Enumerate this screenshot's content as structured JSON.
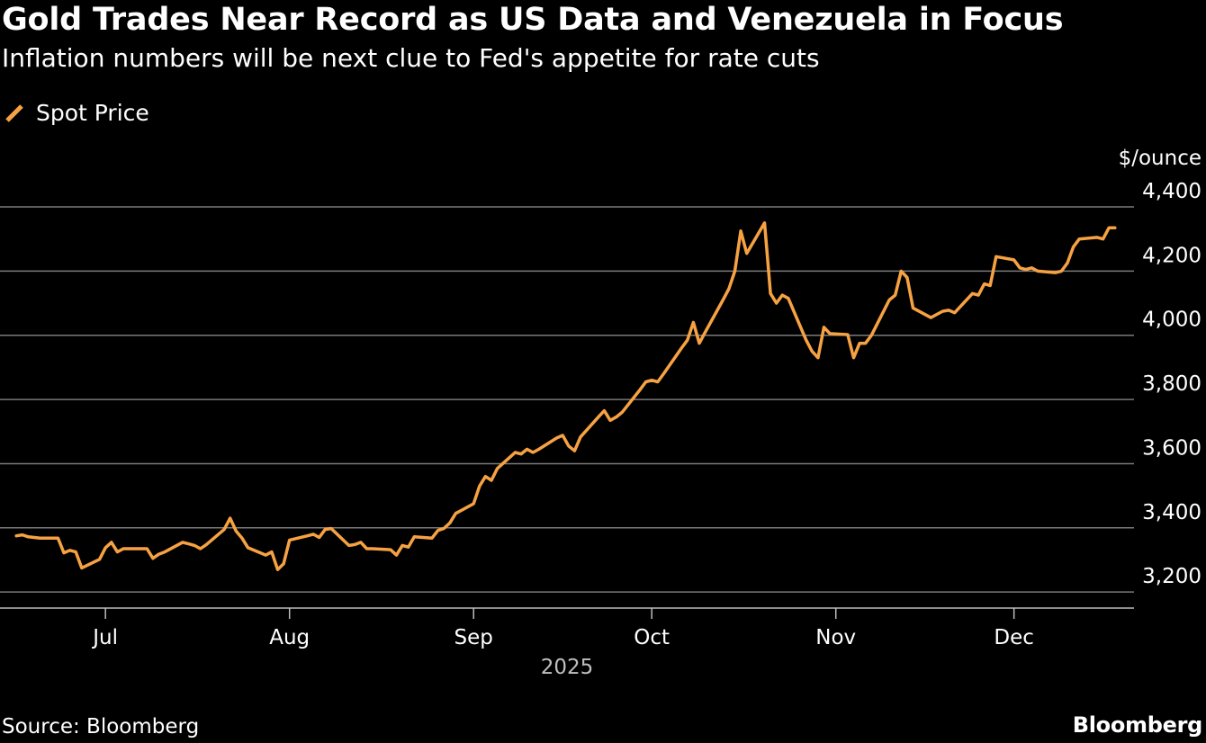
{
  "header": {
    "title": "Gold Trades Near Record as US Data and Venezuela in Focus",
    "subtitle": "Inflation numbers will be next clue to Fed's appetite for rate cuts"
  },
  "footer": {
    "source": "Source: Bloomberg",
    "brand": "Bloomberg"
  },
  "colors": {
    "line": "#f7a242",
    "background": "#000000",
    "grid": "#7a7a7a"
  },
  "chart_data": {
    "type": "line",
    "series": [
      {
        "name": "Spot Price",
        "points": [
          [
            "2025-06-16",
            3375
          ],
          [
            "2025-06-17",
            3378
          ],
          [
            "2025-06-18",
            3372
          ],
          [
            "2025-06-19",
            3370
          ],
          [
            "2025-06-20",
            3368
          ],
          [
            "2025-06-23",
            3368
          ],
          [
            "2025-06-24",
            3322
          ],
          [
            "2025-06-25",
            3330
          ],
          [
            "2025-06-26",
            3325
          ],
          [
            "2025-06-27",
            3275
          ],
          [
            "2025-06-30",
            3302
          ],
          [
            "2025-07-01",
            3338
          ],
          [
            "2025-07-02",
            3355
          ],
          [
            "2025-07-03",
            3325
          ],
          [
            "2025-07-04",
            3335
          ],
          [
            "2025-07-07",
            3335
          ],
          [
            "2025-07-08",
            3335
          ],
          [
            "2025-07-09",
            3305
          ],
          [
            "2025-07-10",
            3318
          ],
          [
            "2025-07-11",
            3325
          ],
          [
            "2025-07-14",
            3355
          ],
          [
            "2025-07-15",
            3350
          ],
          [
            "2025-07-16",
            3345
          ],
          [
            "2025-07-17",
            3335
          ],
          [
            "2025-07-18",
            3348
          ],
          [
            "2025-07-21",
            3395
          ],
          [
            "2025-07-22",
            3430
          ],
          [
            "2025-07-23",
            3390
          ],
          [
            "2025-07-24",
            3368
          ],
          [
            "2025-07-25",
            3338
          ],
          [
            "2025-07-28",
            3315
          ],
          [
            "2025-07-29",
            3325
          ],
          [
            "2025-07-30",
            3270
          ],
          [
            "2025-07-31",
            3288
          ],
          [
            "2025-08-01",
            3362
          ],
          [
            "2025-08-04",
            3375
          ],
          [
            "2025-08-05",
            3380
          ],
          [
            "2025-08-06",
            3370
          ],
          [
            "2025-08-07",
            3395
          ],
          [
            "2025-08-08",
            3398
          ],
          [
            "2025-08-11",
            3345
          ],
          [
            "2025-08-12",
            3348
          ],
          [
            "2025-08-13",
            3355
          ],
          [
            "2025-08-14",
            3335
          ],
          [
            "2025-08-15",
            3335
          ],
          [
            "2025-08-18",
            3332
          ],
          [
            "2025-08-19",
            3315
          ],
          [
            "2025-08-20",
            3345
          ],
          [
            "2025-08-21",
            3340
          ],
          [
            "2025-08-22",
            3372
          ],
          [
            "2025-08-25",
            3368
          ],
          [
            "2025-08-26",
            3392
          ],
          [
            "2025-08-27",
            3398
          ],
          [
            "2025-08-28",
            3415
          ],
          [
            "2025-08-29",
            3445
          ],
          [
            "2025-09-01",
            3475
          ],
          [
            "2025-09-02",
            3530
          ],
          [
            "2025-09-03",
            3560
          ],
          [
            "2025-09-04",
            3548
          ],
          [
            "2025-09-05",
            3585
          ],
          [
            "2025-09-08",
            3635
          ],
          [
            "2025-09-09",
            3630
          ],
          [
            "2025-09-10",
            3645
          ],
          [
            "2025-09-11",
            3635
          ],
          [
            "2025-09-12",
            3645
          ],
          [
            "2025-09-15",
            3680
          ],
          [
            "2025-09-16",
            3688
          ],
          [
            "2025-09-17",
            3655
          ],
          [
            "2025-09-18",
            3640
          ],
          [
            "2025-09-19",
            3683
          ],
          [
            "2025-09-22",
            3745
          ],
          [
            "2025-09-23",
            3765
          ],
          [
            "2025-09-24",
            3735
          ],
          [
            "2025-09-25",
            3745
          ],
          [
            "2025-09-26",
            3760
          ],
          [
            "2025-09-29",
            3830
          ],
          [
            "2025-09-30",
            3855
          ],
          [
            "2025-10-01",
            3860
          ],
          [
            "2025-10-02",
            3855
          ],
          [
            "2025-10-03",
            3880
          ],
          [
            "2025-10-06",
            3960
          ],
          [
            "2025-10-07",
            3985
          ],
          [
            "2025-10-08",
            4040
          ],
          [
            "2025-10-09",
            3975
          ],
          [
            "2025-10-10",
            4010
          ],
          [
            "2025-10-13",
            4110
          ],
          [
            "2025-10-14",
            4145
          ],
          [
            "2025-10-15",
            4200
          ],
          [
            "2025-10-16",
            4325
          ],
          [
            "2025-10-17",
            4255
          ],
          [
            "2025-10-20",
            4350
          ],
          [
            "2025-10-21",
            4130
          ],
          [
            "2025-10-22",
            4100
          ],
          [
            "2025-10-23",
            4125
          ],
          [
            "2025-10-24",
            4115
          ],
          [
            "2025-10-27",
            3985
          ],
          [
            "2025-10-28",
            3950
          ],
          [
            "2025-10-29",
            3930
          ],
          [
            "2025-10-30",
            4025
          ],
          [
            "2025-10-31",
            4005
          ],
          [
            "2025-11-03",
            4002
          ],
          [
            "2025-11-04",
            3930
          ],
          [
            "2025-11-05",
            3975
          ],
          [
            "2025-11-06",
            3975
          ],
          [
            "2025-11-07",
            4000
          ],
          [
            "2025-11-10",
            4110
          ],
          [
            "2025-11-11",
            4125
          ],
          [
            "2025-11-12",
            4200
          ],
          [
            "2025-11-13",
            4180
          ],
          [
            "2025-11-14",
            4085
          ],
          [
            "2025-11-17",
            4055
          ],
          [
            "2025-11-18",
            4065
          ],
          [
            "2025-11-19",
            4075
          ],
          [
            "2025-11-20",
            4078
          ],
          [
            "2025-11-21",
            4070
          ],
          [
            "2025-11-24",
            4130
          ],
          [
            "2025-11-25",
            4125
          ],
          [
            "2025-11-26",
            4160
          ],
          [
            "2025-11-27",
            4155
          ],
          [
            "2025-11-28",
            4245
          ],
          [
            "2025-12-01",
            4235
          ],
          [
            "2025-12-02",
            4210
          ],
          [
            "2025-12-03",
            4205
          ],
          [
            "2025-12-04",
            4210
          ],
          [
            "2025-12-05",
            4200
          ],
          [
            "2025-12-08",
            4195
          ],
          [
            "2025-12-09",
            4200
          ],
          [
            "2025-12-10",
            4225
          ],
          [
            "2025-12-11",
            4275
          ],
          [
            "2025-12-12",
            4300
          ],
          [
            "2025-12-15",
            4305
          ],
          [
            "2025-12-16",
            4300
          ],
          [
            "2025-12-17",
            4335
          ],
          [
            "2025-12-18",
            4335
          ]
        ]
      }
    ],
    "x_ticks": [
      {
        "label": "Jul",
        "date": "2025-07-01"
      },
      {
        "label": "Aug",
        "date": "2025-08-01"
      },
      {
        "label": "Sep",
        "date": "2025-09-01"
      },
      {
        "label": "Oct",
        "date": "2025-10-01"
      },
      {
        "label": "Nov",
        "date": "2025-11-01"
      },
      {
        "label": "Dec",
        "date": "2025-12-01"
      }
    ],
    "x_year_label": "2025",
    "xlim": [
      "2025-06-14",
      "2025-12-20"
    ],
    "ylim": [
      3150,
      4400
    ],
    "y_ticks": [
      3200,
      3400,
      3600,
      3800,
      4000,
      4200,
      4400
    ],
    "y_tick_labels": [
      "3,200",
      "3,400",
      "3,600",
      "3,800",
      "4,000",
      "4,200",
      "4,400"
    ],
    "ylabel": "$/ounce",
    "y_axis_side": "right",
    "grid": true,
    "legend": "top-left"
  }
}
